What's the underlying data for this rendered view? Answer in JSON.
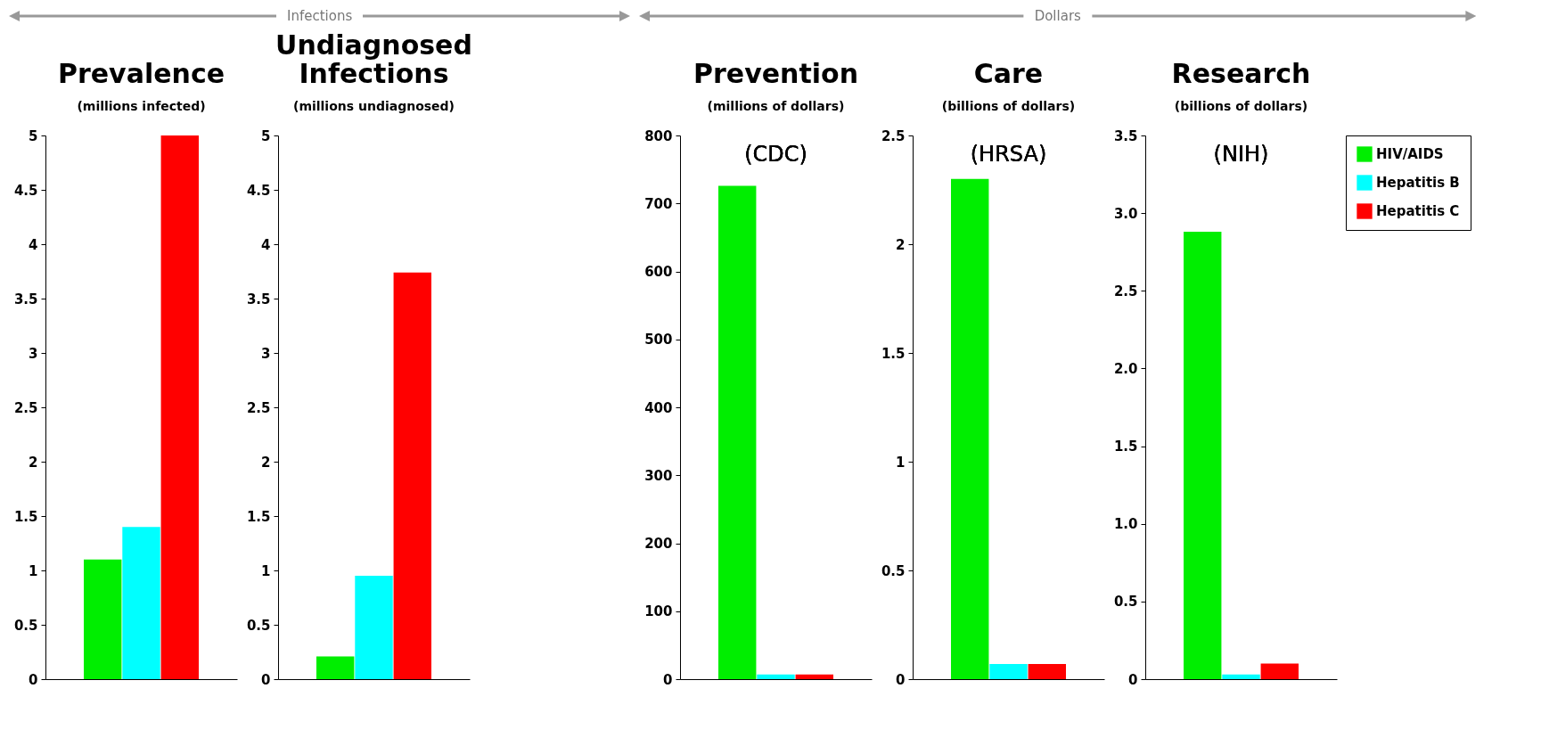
{
  "chart_data": [
    {
      "type": "bar",
      "title": "Prevalence",
      "subtitle": "(millions infected)",
      "annotations": [
        "Infections"
      ],
      "categories": [
        null
      ],
      "series": [
        {
          "color": "#00ee00",
          "values": [
            1.1
          ]
        },
        {
          "color": "#00ffff",
          "values": [
            1.4
          ]
        },
        {
          "color": "#ff0000",
          "values": [
            5.0
          ]
        }
      ],
      "ylim": [
        0,
        5
      ],
      "yticks": [
        0,
        0.5,
        1,
        1.5,
        2,
        2.5,
        3,
        3.5,
        4,
        4.5,
        5
      ],
      "legend": false
    },
    {
      "type": "bar",
      "title": "Undiagnosed Infections",
      "subtitle": "(millions undiagnosed)",
      "categories": [
        null
      ],
      "series": [
        {
          "color": "#00ee00",
          "values": [
            0.21
          ]
        },
        {
          "color": "#00ffff",
          "values": [
            0.95
          ]
        },
        {
          "color": "#ff0000",
          "values": [
            3.74
          ]
        }
      ],
      "ylim": [
        0,
        5
      ],
      "yticks": [
        0,
        0.5,
        1,
        1.5,
        2,
        2.5,
        3,
        3.5,
        4,
        4.5,
        5
      ],
      "legend": false
    },
    {
      "type": "bar",
      "title": "Prevention",
      "subtitle": "(millions of dollars)",
      "annotations": [
        "Dollars",
        "(CDC)"
      ],
      "categories": [
        null
      ],
      "series": [
        {
          "color": "#00ee00",
          "values": [
            726
          ]
        },
        {
          "color": "#00ffff",
          "values": [
            7
          ]
        },
        {
          "color": "#ff0000",
          "values": [
            7
          ]
        }
      ],
      "ylim": [
        0,
        800
      ],
      "yticks": [
        0,
        100,
        200,
        300,
        400,
        500,
        600,
        700,
        800
      ],
      "legend": false
    },
    {
      "type": "bar",
      "title": "Care",
      "subtitle": "(billions of dollars)",
      "annotations": [
        "(HRSA)"
      ],
      "categories": [
        null
      ],
      "series": [
        {
          "color": "#00ee00",
          "values": [
            2.3
          ]
        },
        {
          "color": "#00ffff",
          "values": [
            0.07
          ]
        },
        {
          "color": "#ff0000",
          "values": [
            0.07
          ]
        }
      ],
      "ylim": [
        0,
        2.5
      ],
      "yticks": [
        0,
        0.5,
        1,
        1.5,
        2,
        2.5
      ],
      "legend": false
    },
    {
      "type": "bar",
      "title": "Research",
      "subtitle": "(billions of dollars)",
      "annotations": [
        "(NIH)"
      ],
      "categories": [
        null
      ],
      "series": [
        {
          "name": "HIV/AIDS",
          "color": "#00ee00",
          "values": [
            2.88
          ]
        },
        {
          "name": "Hepatitis B",
          "color": "#00ffff",
          "values": [
            0.03
          ]
        },
        {
          "name": "Hepatitis C",
          "color": "#ff0000",
          "values": [
            0.1
          ]
        }
      ],
      "ylim": [
        0,
        3.5
      ],
      "yticks": [
        0,
        0.5,
        {
          "value": 1,
          "label": "1.0"
        },
        1.5,
        {
          "value": 2,
          "label": "2.0"
        },
        2.5,
        {
          "value": 3,
          "label": "3.0"
        },
        3.5
      ],
      "legend": "right"
    }
  ]
}
